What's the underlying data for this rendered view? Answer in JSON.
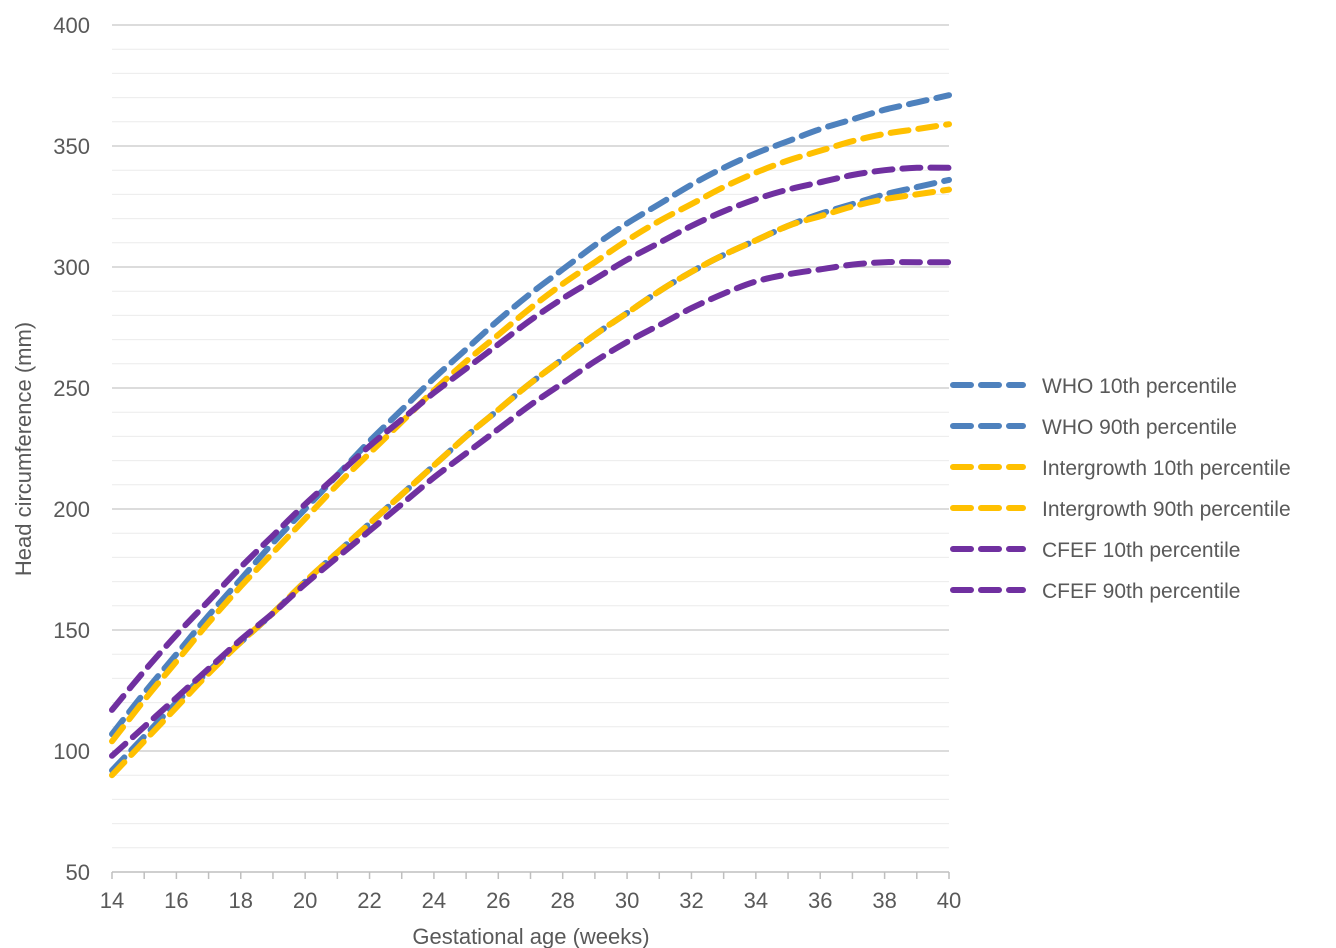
{
  "chart_data": {
    "type": "line",
    "title": "",
    "xlabel": "Gestational age (weeks)",
    "ylabel": "Head circumference (mm)",
    "xlim": [
      14,
      40
    ],
    "ylim": [
      50,
      400
    ],
    "x_ticks": [
      14,
      16,
      18,
      20,
      22,
      24,
      26,
      28,
      30,
      32,
      34,
      36,
      38,
      40
    ],
    "y_ticks": [
      50,
      100,
      150,
      200,
      250,
      300,
      350,
      400
    ],
    "grid": "horizontal, major and minor",
    "legend_position": "right",
    "x": [
      14,
      15,
      16,
      17,
      18,
      19,
      20,
      21,
      22,
      23,
      24,
      25,
      26,
      27,
      28,
      29,
      30,
      31,
      32,
      33,
      34,
      35,
      36,
      37,
      38,
      39,
      40
    ],
    "series": [
      {
        "name": "WHO 10th percentile",
        "color": "#4E81BD",
        "values": [
          92,
          106,
          120,
          133,
          145,
          157,
          170,
          182,
          194,
          206,
          218,
          230,
          241,
          252,
          262,
          272,
          281,
          290,
          298,
          305,
          311,
          317,
          322,
          326,
          330,
          333,
          336
        ]
      },
      {
        "name": "WHO 90th percentile",
        "color": "#4E81BD",
        "values": [
          107,
          124,
          140,
          156,
          171,
          186,
          200,
          214,
          228,
          241,
          254,
          266,
          278,
          289,
          299,
          309,
          318,
          326,
          334,
          341,
          347,
          352,
          357,
          361,
          365,
          368,
          371
        ]
      },
      {
        "name": "Intergrowth 10th percentile",
        "color": "#FFC000",
        "values": [
          90,
          104,
          118,
          132,
          145,
          157,
          170,
          182,
          194,
          206,
          218,
          230,
          241,
          252,
          262,
          272,
          281,
          290,
          298,
          305,
          311,
          317,
          321,
          325,
          328,
          330,
          332
        ]
      },
      {
        "name": "Intergrowth 90th percentile",
        "color": "#FFC000",
        "values": [
          104,
          121,
          137,
          153,
          168,
          182,
          196,
          210,
          223,
          236,
          249,
          261,
          272,
          283,
          293,
          302,
          311,
          319,
          326,
          333,
          339,
          344,
          348,
          352,
          355,
          357,
          359
        ]
      },
      {
        "name": "CFEF 10th percentile",
        "color": "#7030A0",
        "values": [
          98,
          110,
          122,
          134,
          146,
          157,
          169,
          180,
          191,
          202,
          213,
          223,
          233,
          243,
          252,
          261,
          269,
          276,
          283,
          289,
          294,
          297,
          299,
          301,
          302,
          302,
          302
        ]
      },
      {
        "name": "CFEF 90th percentile",
        "color": "#7030A0",
        "values": [
          117,
          133,
          148,
          162,
          176,
          189,
          202,
          214,
          226,
          237,
          248,
          258,
          268,
          278,
          287,
          295,
          303,
          310,
          317,
          323,
          328,
          332,
          335,
          338,
          340,
          341,
          341
        ]
      }
    ]
  }
}
